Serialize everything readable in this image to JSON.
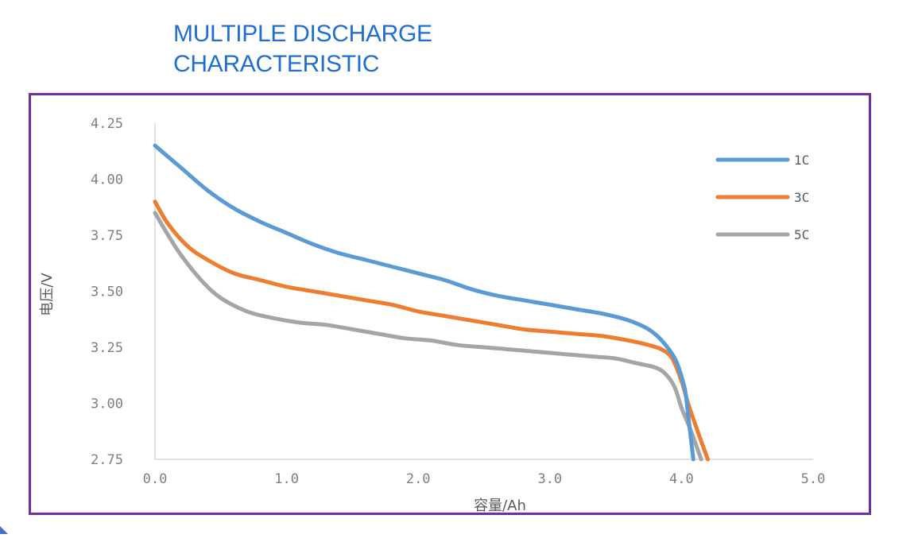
{
  "page": {
    "title_lines": [
      "MULTIPLE DISCHARGE",
      "CHARACTERISTIC"
    ],
    "title_color": "#1f6fd1",
    "frame_color": "#7030a0"
  },
  "chart_data": {
    "type": "line",
    "title": "MULTIPLE DISCHARGE CHARACTERISTIC",
    "xlabel": "容量/Ah",
    "ylabel": "电压/V",
    "xlim": [
      0,
      5
    ],
    "ylim": [
      2.75,
      4.25
    ],
    "x_ticks": [
      "0.0",
      "1.0",
      "2.0",
      "3.0",
      "4.0",
      "5.0"
    ],
    "y_ticks": [
      "2.75",
      "3.00",
      "3.25",
      "3.50",
      "3.75",
      "4.00",
      "4.25"
    ],
    "grid": false,
    "legend_position": "top-right",
    "series": [
      {
        "name": "1C",
        "color": "#5b9bd5",
        "points": [
          [
            0.0,
            4.15
          ],
          [
            0.2,
            4.05
          ],
          [
            0.4,
            3.95
          ],
          [
            0.6,
            3.87
          ],
          [
            0.8,
            3.81
          ],
          [
            1.0,
            3.76
          ],
          [
            1.2,
            3.71
          ],
          [
            1.4,
            3.67
          ],
          [
            1.6,
            3.64
          ],
          [
            1.8,
            3.61
          ],
          [
            2.0,
            3.58
          ],
          [
            2.2,
            3.55
          ],
          [
            2.4,
            3.51
          ],
          [
            2.6,
            3.48
          ],
          [
            2.8,
            3.46
          ],
          [
            3.0,
            3.44
          ],
          [
            3.2,
            3.42
          ],
          [
            3.4,
            3.4
          ],
          [
            3.6,
            3.37
          ],
          [
            3.75,
            3.33
          ],
          [
            3.85,
            3.28
          ],
          [
            3.95,
            3.2
          ],
          [
            4.0,
            3.12
          ],
          [
            4.03,
            3.05
          ],
          [
            4.05,
            2.95
          ],
          [
            4.07,
            2.85
          ],
          [
            4.09,
            2.75
          ]
        ]
      },
      {
        "name": "3C",
        "color": "#ed7d31",
        "points": [
          [
            0.0,
            3.9
          ],
          [
            0.1,
            3.8
          ],
          [
            0.25,
            3.7
          ],
          [
            0.4,
            3.64
          ],
          [
            0.6,
            3.58
          ],
          [
            0.8,
            3.55
          ],
          [
            1.0,
            3.52
          ],
          [
            1.2,
            3.5
          ],
          [
            1.4,
            3.48
          ],
          [
            1.6,
            3.46
          ],
          [
            1.8,
            3.44
          ],
          [
            2.0,
            3.41
          ],
          [
            2.2,
            3.39
          ],
          [
            2.4,
            3.37
          ],
          [
            2.6,
            3.35
          ],
          [
            2.8,
            3.33
          ],
          [
            3.0,
            3.32
          ],
          [
            3.2,
            3.31
          ],
          [
            3.4,
            3.3
          ],
          [
            3.6,
            3.28
          ],
          [
            3.75,
            3.26
          ],
          [
            3.85,
            3.24
          ],
          [
            3.93,
            3.2
          ],
          [
            4.0,
            3.1
          ],
          [
            4.05,
            3.0
          ],
          [
            4.12,
            2.88
          ],
          [
            4.2,
            2.75
          ]
        ]
      },
      {
        "name": "5C",
        "color": "#a5a5a5",
        "points": [
          [
            0.0,
            3.85
          ],
          [
            0.1,
            3.75
          ],
          [
            0.2,
            3.66
          ],
          [
            0.35,
            3.55
          ],
          [
            0.5,
            3.47
          ],
          [
            0.7,
            3.41
          ],
          [
            0.9,
            3.38
          ],
          [
            1.1,
            3.36
          ],
          [
            1.3,
            3.35
          ],
          [
            1.5,
            3.33
          ],
          [
            1.7,
            3.31
          ],
          [
            1.9,
            3.29
          ],
          [
            2.1,
            3.28
          ],
          [
            2.3,
            3.26
          ],
          [
            2.5,
            3.25
          ],
          [
            2.7,
            3.24
          ],
          [
            2.9,
            3.23
          ],
          [
            3.1,
            3.22
          ],
          [
            3.3,
            3.21
          ],
          [
            3.5,
            3.2
          ],
          [
            3.65,
            3.18
          ],
          [
            3.8,
            3.16
          ],
          [
            3.88,
            3.13
          ],
          [
            3.95,
            3.07
          ],
          [
            4.0,
            2.98
          ],
          [
            4.07,
            2.88
          ],
          [
            4.15,
            2.75
          ]
        ]
      }
    ]
  }
}
